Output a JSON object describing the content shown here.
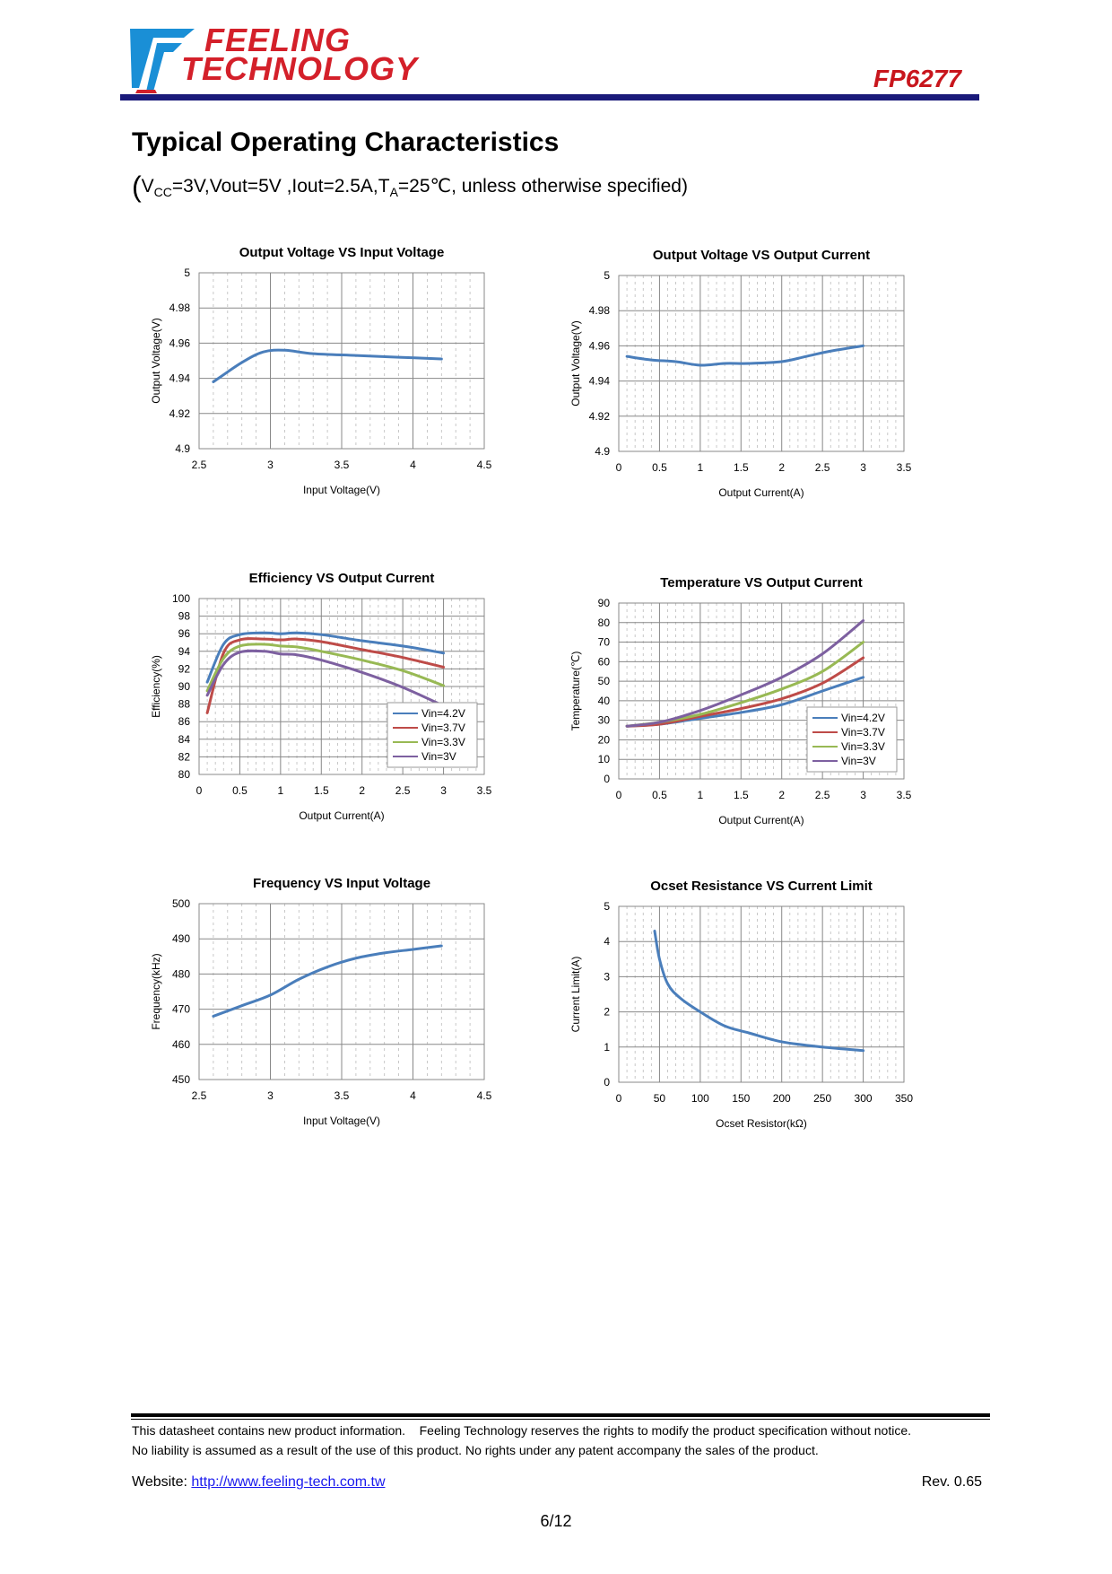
{
  "header": {
    "logo_line1": "FEELING",
    "logo_line2": "TECHNOLOGY",
    "part_number": "FP6277",
    "brand_color": "#d4202a",
    "rule_color": "#1a1a7a"
  },
  "section": {
    "title": "Typical Operating Characteristics",
    "conditions": "VCC=3V,Vout=5V ,Iout=2.5A,TA=25℃, unless otherwise specified",
    "cond_parts": {
      "v": "V",
      "cc": "CC",
      "mid": "=3V,Vout=5V ,Iout=2.5A,T",
      "a": "A",
      "end": "=25℃, unless otherwise specified"
    }
  },
  "chart_data": [
    {
      "id": "c1",
      "type": "line",
      "title": "Output Voltage VS Input Voltage",
      "xlabel": "Input Voltage(V)",
      "ylabel": "Output Voltage(V)",
      "xlim": [
        2.5,
        4.5
      ],
      "ylim": [
        4.9,
        5
      ],
      "xticks": [
        2.5,
        3,
        3.5,
        4,
        4.5
      ],
      "yticks": [
        4.9,
        4.92,
        4.94,
        4.96,
        4.98,
        5
      ],
      "xtick_labels": [
        "2.5",
        "3",
        "3.5",
        "4",
        "4.5"
      ],
      "ytick_labels": [
        "4.9",
        "4.92",
        "4.94",
        "4.96",
        "4.98",
        "5"
      ],
      "legend": null,
      "series": [
        {
          "name": "Vout",
          "color": "#4a7ebb",
          "x": [
            2.6,
            2.8,
            2.95,
            3.1,
            3.3,
            3.6,
            3.9,
            4.2
          ],
          "y": [
            4.938,
            4.949,
            4.955,
            4.956,
            4.954,
            4.953,
            4.952,
            4.951
          ]
        }
      ]
    },
    {
      "id": "c2",
      "type": "line",
      "title": "Output Voltage VS Output Current",
      "xlabel": "Output Current(A)",
      "ylabel": "Output Voltage(V)",
      "xlim": [
        0,
        3.5
      ],
      "ylim": [
        4.9,
        5
      ],
      "xticks": [
        0,
        0.5,
        1,
        1.5,
        2,
        2.5,
        3,
        3.5
      ],
      "yticks": [
        4.9,
        4.92,
        4.94,
        4.96,
        4.98,
        5
      ],
      "xtick_labels": [
        "0",
        "0.5",
        "1",
        "1.5",
        "2",
        "2.5",
        "3",
        "3.5"
      ],
      "ytick_labels": [
        "4.9",
        "4.92",
        "4.94",
        "4.96",
        "4.98",
        "5"
      ],
      "legend": null,
      "series": [
        {
          "name": "Vout",
          "color": "#4a7ebb",
          "x": [
            0.1,
            0.4,
            0.7,
            1.0,
            1.3,
            1.6,
            2.0,
            2.3,
            2.6,
            3.0
          ],
          "y": [
            4.954,
            4.952,
            4.951,
            4.949,
            4.95,
            4.95,
            4.951,
            4.954,
            4.957,
            4.96
          ]
        }
      ]
    },
    {
      "id": "c3",
      "type": "line",
      "title": "Efficiency VS Output Current",
      "xlabel": "Output Current(A)",
      "ylabel": "Efficiency(%)",
      "xlim": [
        0,
        3.5
      ],
      "ylim": [
        80,
        100
      ],
      "xticks": [
        0,
        0.5,
        1,
        1.5,
        2,
        2.5,
        3,
        3.5
      ],
      "yticks": [
        80,
        82,
        84,
        86,
        88,
        90,
        92,
        94,
        96,
        98,
        100
      ],
      "xtick_labels": [
        "0",
        "0.5",
        "1",
        "1.5",
        "2",
        "2.5",
        "3",
        "3.5"
      ],
      "ytick_labels": [
        "80",
        "82",
        "84",
        "86",
        "88",
        "90",
        "92",
        "94",
        "96",
        "98",
        "100"
      ],
      "legend": "bottom-right",
      "series": [
        {
          "name": "Vin=4.2V",
          "color": "#4a7ebb",
          "x": [
            0.1,
            0.3,
            0.5,
            0.8,
            1.0,
            1.2,
            1.5,
            2.0,
            2.5,
            3.0
          ],
          "y": [
            90.5,
            94.8,
            95.9,
            96.1,
            96.0,
            96.1,
            95.9,
            95.2,
            94.6,
            93.8
          ]
        },
        {
          "name": "Vin=3.7V",
          "color": "#be4b48",
          "x": [
            0.1,
            0.3,
            0.5,
            0.8,
            1.0,
            1.2,
            1.5,
            2.0,
            2.5,
            3.0
          ],
          "y": [
            87.0,
            93.8,
            95.3,
            95.4,
            95.3,
            95.4,
            95.1,
            94.2,
            93.3,
            92.2
          ]
        },
        {
          "name": "Vin=3.3V",
          "color": "#98b954",
          "x": [
            0.1,
            0.3,
            0.5,
            0.8,
            1.0,
            1.2,
            1.5,
            2.0,
            2.5,
            3.0
          ],
          "y": [
            89.5,
            93.2,
            94.6,
            94.8,
            94.6,
            94.5,
            94.0,
            93.0,
            91.8,
            90.1
          ]
        },
        {
          "name": "Vin=3V",
          "color": "#7d60a0",
          "x": [
            0.1,
            0.3,
            0.5,
            0.8,
            1.0,
            1.2,
            1.5,
            2.0,
            2.5,
            3.0
          ],
          "y": [
            89.0,
            92.5,
            93.9,
            94.0,
            93.7,
            93.6,
            93.0,
            91.6,
            89.9,
            87.8
          ]
        }
      ]
    },
    {
      "id": "c4",
      "type": "line",
      "title": "Temperature VS Output Current",
      "xlabel": "Output Current(A)",
      "ylabel": "Temperature(℃)",
      "xlim": [
        0,
        3.5
      ],
      "ylim": [
        0,
        90
      ],
      "xticks": [
        0,
        0.5,
        1,
        1.5,
        2,
        2.5,
        3,
        3.5
      ],
      "yticks": [
        0,
        10,
        20,
        30,
        40,
        50,
        60,
        70,
        80,
        90
      ],
      "xtick_labels": [
        "0",
        "0.5",
        "1",
        "1.5",
        "2",
        "2.5",
        "3",
        "3.5"
      ],
      "ytick_labels": [
        "0",
        "10",
        "20",
        "30",
        "40",
        "50",
        "60",
        "70",
        "80",
        "90"
      ],
      "legend": "bottom-right",
      "series": [
        {
          "name": "Vin=4.2V",
          "color": "#4a7ebb",
          "x": [
            0.1,
            0.5,
            1.0,
            1.5,
            2.0,
            2.5,
            3.0
          ],
          "y": [
            27,
            28,
            31,
            34,
            38,
            45,
            52
          ]
        },
        {
          "name": "Vin=3.7V",
          "color": "#be4b48",
          "x": [
            0.1,
            0.5,
            1.0,
            1.5,
            2.0,
            2.5,
            3.0
          ],
          "y": [
            27,
            28,
            32,
            36,
            41,
            49,
            62
          ]
        },
        {
          "name": "Vin=3.3V",
          "color": "#98b954",
          "x": [
            0.1,
            0.5,
            1.0,
            1.5,
            2.0,
            2.5,
            3.0
          ],
          "y": [
            27,
            29,
            33,
            39,
            46,
            55,
            70
          ]
        },
        {
          "name": "Vin=3V",
          "color": "#7d60a0",
          "x": [
            0.1,
            0.5,
            1.0,
            1.5,
            2.0,
            2.5,
            3.0
          ],
          "y": [
            27,
            29,
            35,
            43,
            52,
            64,
            81
          ]
        }
      ]
    },
    {
      "id": "c5",
      "type": "line",
      "title": "Frequency VS Input Voltage",
      "xlabel": "Input Voltage(V)",
      "ylabel": "Frequency(kHz)",
      "xlim": [
        2.5,
        4.5
      ],
      "ylim": [
        450,
        500
      ],
      "xticks": [
        2.5,
        3,
        3.5,
        4,
        4.5
      ],
      "yticks": [
        450,
        460,
        470,
        480,
        490,
        500
      ],
      "xtick_labels": [
        "2.5",
        "3",
        "3.5",
        "4",
        "4.5"
      ],
      "ytick_labels": [
        "450",
        "460",
        "470",
        "480",
        "490",
        "500"
      ],
      "legend": null,
      "series": [
        {
          "name": "Frequency",
          "color": "#4a7ebb",
          "x": [
            2.6,
            2.8,
            3.0,
            3.2,
            3.4,
            3.6,
            3.8,
            4.0,
            4.2
          ],
          "y": [
            468,
            471,
            474,
            478.5,
            482,
            484.5,
            486,
            487,
            488
          ]
        }
      ]
    },
    {
      "id": "c6",
      "type": "line",
      "title": "Ocset Resistance VS Current Limit",
      "xlabel": "Ocset Resistor(kΩ)",
      "ylabel": "Current Limit(A)",
      "xlim": [
        0,
        350
      ],
      "ylim": [
        0,
        5
      ],
      "xticks": [
        0,
        50,
        100,
        150,
        200,
        250,
        300,
        350
      ],
      "yticks": [
        0,
        1,
        2,
        3,
        4,
        5
      ],
      "xtick_labels": [
        "0",
        "50",
        "100",
        "150",
        "200",
        "250",
        "300",
        "350"
      ],
      "ytick_labels": [
        "0",
        "1",
        "2",
        "3",
        "4",
        "5"
      ],
      "legend": null,
      "series": [
        {
          "name": "Current Limit",
          "color": "#4a7ebb",
          "x": [
            44,
            50,
            60,
            75,
            100,
            130,
            160,
            200,
            250,
            300
          ],
          "y": [
            4.3,
            3.5,
            2.8,
            2.4,
            2.0,
            1.6,
            1.4,
            1.15,
            1.0,
            0.9
          ]
        }
      ]
    }
  ],
  "footer": {
    "notice_line1": "This datasheet contains new product information.    Feeling Technology reserves the rights to modify the product specification without notice.",
    "notice_line2": "No liability is assumed as a result of the use of this product. No rights under any patent accompany the sales of the product.",
    "website_label": "Website: ",
    "website_url": "http://www.feeling-tech.com.tw",
    "revision": "Rev. 0.65",
    "page": "6/12"
  }
}
